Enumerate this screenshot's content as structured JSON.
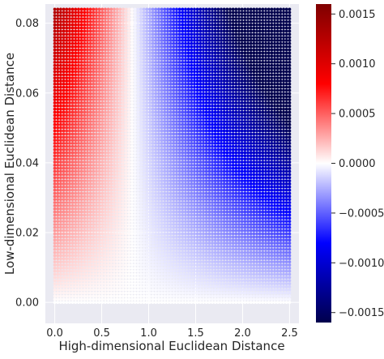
{
  "chart_data": {
    "type": "scatter",
    "title": "",
    "xlabel": "High-dimensional Euclidean Distance",
    "ylabel": "Low-dimensional Euclidean Distance",
    "xlim": [
      -0.1,
      2.6
    ],
    "ylim": [
      -0.006,
      0.0855
    ],
    "x_range": [
      0.0,
      2.5
    ],
    "y_range": [
      0.0,
      0.084
    ],
    "grid": true,
    "x_ticks": [
      0.0,
      0.5,
      1.0,
      1.5,
      2.0,
      2.5
    ],
    "x_tick_labels": [
      "0.0",
      "0.5",
      "1.0",
      "1.5",
      "2.0",
      "2.5"
    ],
    "y_ticks": [
      0.0,
      0.02,
      0.04,
      0.06,
      0.08
    ],
    "y_tick_labels": [
      "0.00",
      "0.02",
      "0.04",
      "0.06",
      "0.08"
    ],
    "color_field": {
      "description": "value = k * y * (x0 - x), diverging seismic colormap",
      "x0": 0.83,
      "scale": 0.0187,
      "colormap": "seismic"
    },
    "colorbar": {
      "vmin": -0.0016,
      "vmax": 0.0016,
      "ticks": [
        0.0015,
        0.001,
        0.0005,
        0.0,
        -0.0005,
        -0.001,
        -0.0015
      ],
      "tick_labels": [
        "0.0015",
        "0.0010",
        "0.0005",
        "0.0000",
        "−0.0005",
        "−0.0010",
        "−0.0015"
      ],
      "colors": [
        "#00004c",
        "#0000ff",
        "#ffffff",
        "#ff0000",
        "#7f0000"
      ]
    },
    "background_color": "#eaeaf2"
  }
}
